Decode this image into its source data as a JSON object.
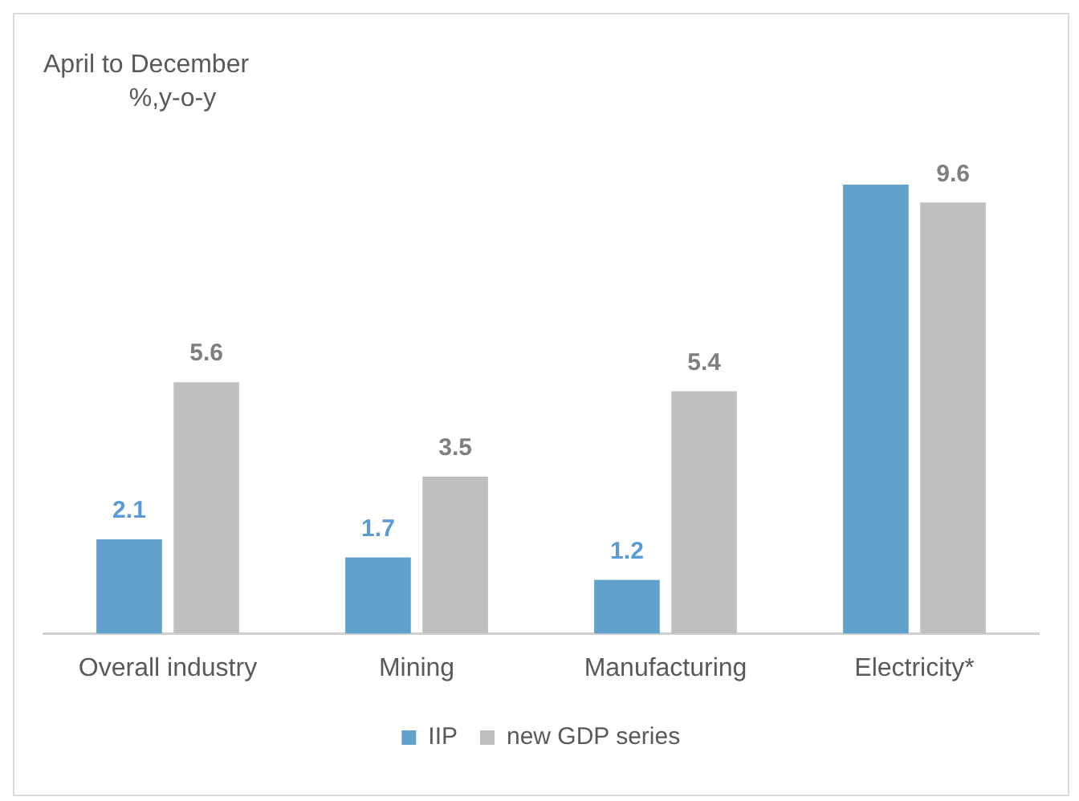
{
  "chart_data": {
    "type": "bar",
    "title": "April to December",
    "subtitle": "%,y-o-y",
    "categories": [
      "Overall industry",
      "Mining",
      "Manufacturing",
      "Electricity*"
    ],
    "series": [
      {
        "name": "IIP",
        "color": "#62a1cb",
        "values": [
          2.1,
          1.7,
          1.2,
          10.0
        ],
        "value_labels": [
          "2.1",
          "1.7",
          "1.2",
          null
        ]
      },
      {
        "name": "new GDP series",
        "color": "#bfbfbf",
        "values": [
          5.6,
          3.5,
          5.4,
          9.6
        ],
        "value_labels": [
          "5.6",
          "3.5",
          "5.4",
          "9.6"
        ]
      }
    ],
    "legend": "bottom",
    "grid": false
  }
}
